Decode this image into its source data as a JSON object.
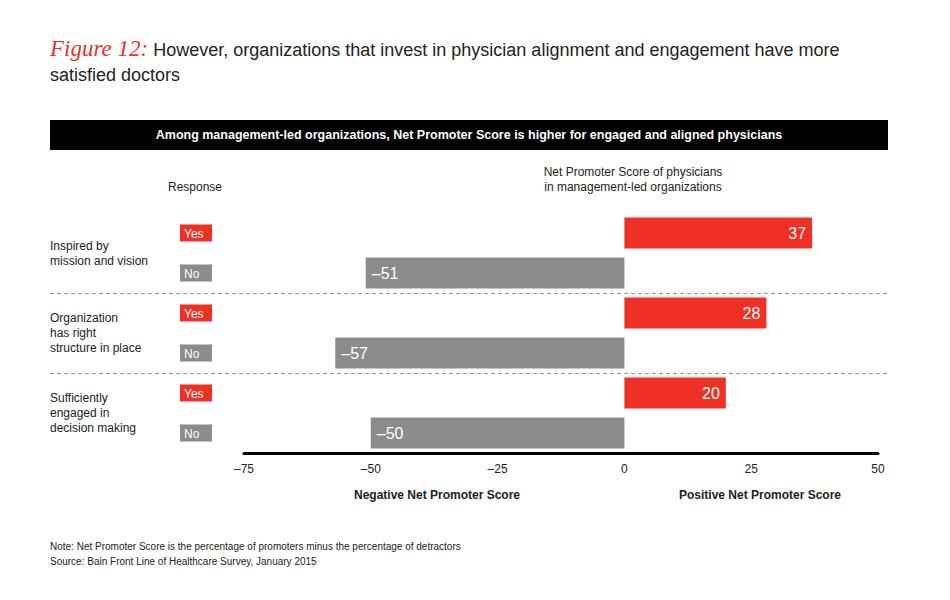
{
  "chart_data": {
    "type": "bar",
    "orientation": "horizontal",
    "figure_label": "Figure 12:",
    "title": "However, organizations that invest in physician alignment and engagement have more satisfied doctors",
    "subtitle": "Among management-led organizations, Net Promoter Score is higher for engaged and aligned physicians",
    "response_label": "Response",
    "value_axis_title": "Net Promoter Score of physicians\nin management-led organizations",
    "negative_label": "Negative Net Promoter Score",
    "positive_label": "Positive Net Promoter Score",
    "groups": [
      "Inspired by\nmission and vision",
      "Organization\nhas right\nstructure in place",
      "Sufficiently\nengaged in\ndecision making"
    ],
    "categories": [
      "Yes",
      "No",
      "Yes",
      "No",
      "Yes",
      "No"
    ],
    "values": [
      37,
      -51,
      28,
      -57,
      20,
      -50
    ],
    "value_labels": [
      "37",
      "–51",
      "28",
      "–57",
      "20",
      "–50"
    ],
    "colors": [
      "#ee3124",
      "#8c8c8c",
      "#ee3124",
      "#8c8c8c",
      "#ee3124",
      "#8c8c8c"
    ],
    "xlim": [
      -75,
      50
    ],
    "xticks": [
      {
        "value": -75,
        "label": "–75"
      },
      {
        "value": -50,
        "label": "–50"
      },
      {
        "value": -25,
        "label": "–25"
      },
      0,
      25,
      50
    ],
    "data_labels": true,
    "grid": false,
    "note": "Note: Net Promoter Score is the percentage of promoters minus the percentage of detractors",
    "source": "Source: Bain Front Line of Healthcare Survey, January 2015"
  }
}
